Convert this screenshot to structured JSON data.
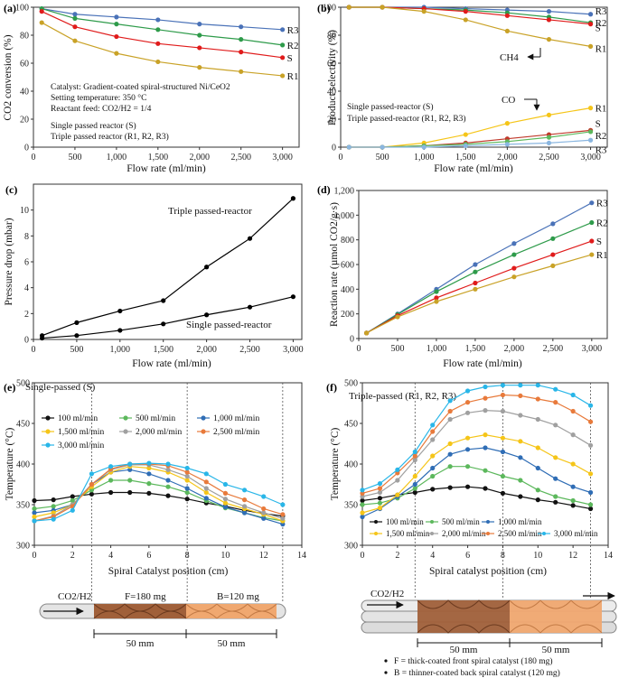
{
  "chart_data": [
    {
      "id": "a",
      "type": "line",
      "panel_label": "(a)",
      "xlabel": "Flow rate (ml/min)",
      "ylabel": "CO2 conversion (%)",
      "xlim": [
        0,
        3200
      ],
      "ylim": [
        0,
        100
      ],
      "xticks": [
        "0",
        "500",
        "1,000",
        "1,500",
        "2,000",
        "2,500",
        "3,000"
      ],
      "yticks": [
        "0",
        "20",
        "40",
        "60",
        "80",
        "100"
      ],
      "x": [
        100,
        500,
        1000,
        1500,
        2000,
        2500,
        3000
      ],
      "series": [
        {
          "name": "R3",
          "color": "#4a72b8",
          "values": [
            99,
            95,
            93,
            91,
            88,
            86,
            84
          ]
        },
        {
          "name": "R2",
          "color": "#2e9b4a",
          "values": [
            99,
            92,
            88,
            84,
            80,
            77,
            73
          ]
        },
        {
          "name": "S",
          "color": "#e01b1b",
          "values": [
            97,
            86,
            79,
            74,
            71,
            68,
            64
          ]
        },
        {
          "name": "R1",
          "color": "#c9a227",
          "values": [
            89,
            76,
            67,
            61,
            57,
            54,
            51
          ]
        }
      ],
      "annotations": [
        "Catalyst: Gradient-coated spiral-structured Ni/CeO2",
        "Setting temperature: 350 °C",
        "Reactant feed: CO2/H2 = 1/4"
      ],
      "legend_single": "Single passed reactor (S)",
      "legend_triple": "Triple passed reactor (R1, R2, R3)"
    },
    {
      "id": "b",
      "type": "line",
      "panel_label": "(b)",
      "xlabel": "Flow rate (ml/min)",
      "ylabel": "Product selectivity (%)",
      "xlim": [
        0,
        3200
      ],
      "ylim": [
        0,
        100
      ],
      "xticks": [
        "0",
        "500",
        "1,000",
        "1,500",
        "2,000",
        "2,500",
        "3,000"
      ],
      "yticks": [
        "0",
        "20",
        "40",
        "60",
        "80",
        "100"
      ],
      "x": [
        100,
        500,
        1000,
        1500,
        2000,
        2500,
        3000
      ],
      "series": [
        {
          "name": "R3 CH4",
          "label": "R3",
          "color": "#4a72b8",
          "values": [
            100,
            100,
            100,
            99,
            98,
            97,
            95
          ]
        },
        {
          "name": "R2 CH4",
          "label": "R2",
          "color": "#2e9b4a",
          "values": [
            100,
            100,
            99,
            98,
            96,
            93,
            89
          ]
        },
        {
          "name": "S CH4",
          "label": "S",
          "color": "#e01b1b",
          "values": [
            100,
            100,
            99,
            97,
            94,
            91,
            88
          ]
        },
        {
          "name": "R1 CH4",
          "label": "R1",
          "color": "#c9a227",
          "values": [
            100,
            100,
            97,
            91,
            83,
            77,
            72
          ]
        },
        {
          "name": "R1 CO",
          "label": "R1",
          "color": "#f5c518",
          "values": [
            0,
            0,
            3,
            9,
            17,
            23,
            28
          ]
        },
        {
          "name": "S CO",
          "label": "S",
          "color": "#c0392b",
          "values": [
            0,
            0,
            1,
            3,
            6,
            9,
            12
          ]
        },
        {
          "name": "R2 CO",
          "label": "R2",
          "color": "#5cb85c",
          "values": [
            0,
            0,
            1,
            2,
            4,
            7,
            11
          ]
        },
        {
          "name": "R3 CO",
          "label": "R3",
          "color": "#8ab6e0",
          "values": [
            0,
            0,
            0,
            1,
            2,
            3,
            5
          ]
        }
      ],
      "ch4_label": "CH4",
      "co_label": "CO",
      "legend_single": "Single passed-reactor (S)",
      "legend_triple": "Triple passed-reactor (R1, R2, R3)"
    },
    {
      "id": "c",
      "type": "line",
      "panel_label": "(c)",
      "xlabel": "Flow rate (ml/min)",
      "ylabel": "Pressure drop (mbar)",
      "xlim": [
        0,
        3100
      ],
      "ylim": [
        0,
        12
      ],
      "xticks": [
        "0",
        "500",
        "1,000",
        "1,500",
        "2,000",
        "2,500",
        "3,000"
      ],
      "yticks": [
        "0",
        "2",
        "4",
        "6",
        "8",
        "10"
      ],
      "x": [
        100,
        500,
        1000,
        1500,
        2000,
        2500,
        3000
      ],
      "series": [
        {
          "name": "Triple passed-reactor",
          "color": "#000000",
          "values": [
            0.3,
            1.3,
            2.2,
            3.0,
            5.6,
            7.8,
            10.9
          ]
        },
        {
          "name": "Single passed-reactor",
          "color": "#000000",
          "values": [
            0.1,
            0.3,
            0.7,
            1.2,
            1.9,
            2.5,
            3.3
          ]
        }
      ]
    },
    {
      "id": "d",
      "type": "line",
      "panel_label": "(d)",
      "xlabel": "Flow rate (ml/min)",
      "ylabel": "Reaction rate (µmol CO2/g·s)",
      "xlim": [
        0,
        3200
      ],
      "ylim": [
        0,
        1200
      ],
      "xticks": [
        "0",
        "500",
        "1,000",
        "1,500",
        "2,000",
        "2,500",
        "3,000"
      ],
      "yticks": [
        "0",
        "200",
        "400",
        "600",
        "800",
        "1,000",
        "1,200"
      ],
      "x": [
        100,
        500,
        1000,
        1500,
        2000,
        2500,
        3000
      ],
      "series": [
        {
          "name": "R3",
          "color": "#4a72b8",
          "values": [
            45,
            200,
            400,
            600,
            770,
            930,
            1100
          ]
        },
        {
          "name": "R2",
          "color": "#2e9b4a",
          "values": [
            45,
            195,
            380,
            540,
            680,
            810,
            940
          ]
        },
        {
          "name": "S",
          "color": "#e01b1b",
          "values": [
            45,
            185,
            330,
            450,
            570,
            680,
            790
          ]
        },
        {
          "name": "R1",
          "color": "#c9a227",
          "values": [
            45,
            175,
            300,
            400,
            500,
            590,
            680
          ]
        }
      ]
    },
    {
      "id": "e",
      "type": "line",
      "panel_label": "(e)",
      "title": "Single-passed (S)",
      "xlabel": "Spiral Catalyst position (cm)",
      "ylabel": "Temperature (°C)",
      "xlim": [
        0,
        14
      ],
      "ylim": [
        300,
        500
      ],
      "xticks": [
        "0",
        "2",
        "4",
        "6",
        "8",
        "10",
        "12",
        "14"
      ],
      "yticks": [
        "300",
        "350",
        "400",
        "450",
        "500"
      ],
      "x": [
        0,
        1,
        2,
        3,
        4,
        5,
        6,
        7,
        8,
        9,
        10,
        11,
        12,
        13
      ],
      "series": [
        {
          "name": "100 ml/min",
          "color": "#111111",
          "values": [
            355,
            356,
            360,
            363,
            365,
            365,
            364,
            361,
            357,
            352,
            348,
            343,
            339,
            336
          ]
        },
        {
          "name": "500 ml/min",
          "color": "#5cb85c",
          "values": [
            345,
            348,
            355,
            368,
            380,
            380,
            376,
            372,
            365,
            355,
            346,
            340,
            334,
            330
          ]
        },
        {
          "name": "1,000 ml/min",
          "color": "#2f6db5",
          "values": [
            340,
            343,
            350,
            375,
            390,
            393,
            388,
            380,
            370,
            358,
            347,
            340,
            333,
            326
          ]
        },
        {
          "name": "1,500 ml/min",
          "color": "#f5c518",
          "values": [
            335,
            340,
            350,
            372,
            390,
            397,
            395,
            390,
            380,
            365,
            352,
            345,
            338,
            330
          ]
        },
        {
          "name": "2,000 ml/min",
          "color": "#a0a0a0",
          "values": [
            330,
            336,
            350,
            375,
            393,
            399,
            399,
            393,
            385,
            370,
            357,
            348,
            340,
            333
          ]
        },
        {
          "name": "2,500 ml/min",
          "color": "#e87a3b",
          "values": [
            330,
            335,
            348,
            375,
            394,
            400,
            400,
            398,
            390,
            378,
            364,
            356,
            345,
            338
          ]
        },
        {
          "name": "3,000 ml/min",
          "color": "#29b6e8",
          "values": [
            330,
            332,
            343,
            388,
            397,
            400,
            401,
            400,
            395,
            388,
            375,
            368,
            360,
            350
          ]
        }
      ],
      "front_label": "F=180 mg",
      "back_label": "B=120 mg",
      "gas_label": "CO2/H2",
      "span_1": "50 mm",
      "span_2": "50 mm"
    },
    {
      "id": "f",
      "type": "line",
      "panel_label": "(f)",
      "title": "Triple-passed (R1, R2, R3)",
      "xlabel": "Spiral catalyst position (cm)",
      "ylabel": "Temperature (°C)",
      "xlim": [
        0,
        14
      ],
      "ylim": [
        300,
        500
      ],
      "xticks": [
        "0",
        "2",
        "4",
        "6",
        "8",
        "10",
        "12",
        "14"
      ],
      "yticks": [
        "300",
        "350",
        "400",
        "450",
        "500"
      ],
      "x": [
        0,
        1,
        2,
        3,
        4,
        5,
        6,
        7,
        8,
        9,
        10,
        11,
        12,
        13
      ],
      "series": [
        {
          "name": "100 ml/min",
          "color": "#111111",
          "values": [
            355,
            358,
            362,
            365,
            369,
            371,
            372,
            370,
            364,
            360,
            356,
            353,
            349,
            345
          ]
        },
        {
          "name": "500 ml/min",
          "color": "#5cb85c",
          "values": [
            350,
            352,
            358,
            370,
            385,
            397,
            397,
            392,
            385,
            380,
            368,
            360,
            355,
            350
          ]
        },
        {
          "name": "1,000 ml/min",
          "color": "#2f6db5",
          "values": [
            335,
            345,
            360,
            375,
            395,
            412,
            418,
            420,
            415,
            408,
            395,
            382,
            372,
            365
          ]
        },
        {
          "name": "1,500 ml/min",
          "color": "#f5c518",
          "values": [
            340,
            346,
            362,
            385,
            410,
            425,
            432,
            436,
            432,
            428,
            420,
            408,
            400,
            388
          ]
        },
        {
          "name": "2,000 ml/min",
          "color": "#a0a0a0",
          "values": [
            360,
            365,
            380,
            405,
            430,
            455,
            463,
            466,
            465,
            460,
            455,
            448,
            436,
            423
          ]
        },
        {
          "name": "2,500 ml/min",
          "color": "#e87a3b",
          "values": [
            364,
            370,
            389,
            410,
            440,
            465,
            476,
            481,
            485,
            484,
            480,
            476,
            465,
            452
          ]
        },
        {
          "name": "3,000 ml/min",
          "color": "#29b6e8",
          "values": [
            368,
            376,
            393,
            415,
            448,
            478,
            490,
            495,
            497,
            497,
            497,
            492,
            485,
            472
          ]
        }
      ],
      "gas_label": "CO2/H2",
      "span_1": "50 mm",
      "span_2": "50 mm",
      "footnote_1": "F = thick-coated front spiral catalyst (180 mg)",
      "footnote_2": "B = thinner-coated back spiral catalyst (120 mg)"
    }
  ]
}
